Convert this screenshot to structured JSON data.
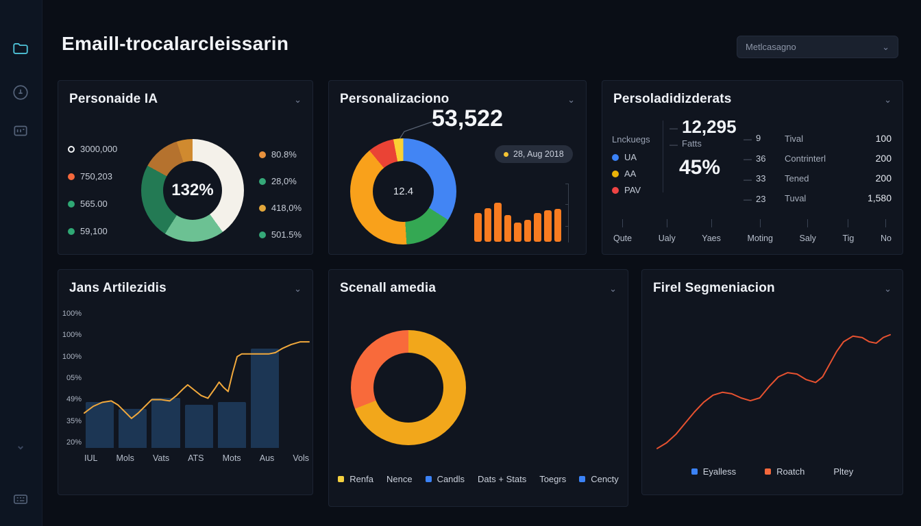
{
  "header": {
    "title": "Emaill-trocalarcleissarin",
    "filter_value": "Metlcasagno"
  },
  "sidebar": {
    "icons": [
      "folder-icon",
      "user-circle-icon",
      "card-icon",
      "chevron-icon",
      "grid-icon"
    ]
  },
  "panel1": {
    "title": "Personaide IA",
    "center_value": "132%",
    "legend_left": [
      {
        "value": "3000,000",
        "color": "#f2f4f6",
        "ring": true
      },
      {
        "value": "750,203",
        "color": "#f4683c"
      },
      {
        "value": "565.00",
        "color": "#2fa874"
      },
      {
        "value": "59,100",
        "color": "#2fa874"
      }
    ],
    "legend_right": [
      {
        "value": "80.8%",
        "color": "#e8913d"
      },
      {
        "value": "28,0%",
        "color": "#35a878"
      },
      {
        "value": "418,0%",
        "color": "#e2a63b"
      },
      {
        "value": "501.5%",
        "color": "#35a878"
      }
    ],
    "donut": {
      "type": "donut",
      "segments": [
        {
          "color": "#f4f1ea",
          "pct": 40
        },
        {
          "color": "#6cc193",
          "pct": 19
        },
        {
          "color": "#237a54",
          "pct": 24
        },
        {
          "color": "#b5722e",
          "pct": 12
        },
        {
          "color": "#d08a2f",
          "pct": 5
        }
      ]
    }
  },
  "panel2": {
    "title": "Personalizaciono",
    "callout_value": "53,522",
    "badge_label": "28, Aug 2018",
    "center_value": "12.4",
    "donut": {
      "type": "donut",
      "segments": [
        {
          "color": "#4285f4",
          "pct": 34
        },
        {
          "color": "#34a853",
          "pct": 15
        },
        {
          "color": "#f9a11b",
          "pct": 40
        },
        {
          "color": "#ea4335",
          "pct": 8
        },
        {
          "color": "#fbd034",
          "pct": 3
        }
      ]
    },
    "bars": {
      "type": "bar",
      "color": "#f97c20",
      "values": [
        44,
        52,
        60,
        41,
        29,
        34,
        44,
        48,
        51
      ]
    }
  },
  "panel3": {
    "title": "Persoladidizderats",
    "group_label": "Lnckuegs",
    "legend": [
      {
        "label": "UA",
        "color": "#3b82f6"
      },
      {
        "label": "AA",
        "color": "#eab308"
      },
      {
        "label": "PAV",
        "color": "#ef4444"
      }
    ],
    "headline_value": "12,295",
    "headline_label": "Fatts",
    "percent_value": "45%",
    "mini_values": [
      "9",
      "36",
      "33",
      "23"
    ],
    "stats": [
      {
        "label": "Tival",
        "value": "100"
      },
      {
        "label": "Contrinterl",
        "value": "200"
      },
      {
        "label": "Tened",
        "value": "200"
      },
      {
        "label": "Tuval",
        "value": "1,580"
      }
    ],
    "axis_labels": [
      "Qute",
      "Ualy",
      "Yaes",
      "Moting",
      "Saly",
      "Tig",
      "No"
    ]
  },
  "panel4": {
    "title": "Jans Artilezidis",
    "chart": {
      "type": "bar-line",
      "y_labels": [
        "100%",
        "100%",
        "100%",
        "05%",
        "49%",
        "35%",
        "20%"
      ],
      "x_labels": [
        "IUL",
        "Mols",
        "Vats",
        "ATS",
        "Mots",
        "Aus",
        "Vols"
      ],
      "bar_color": "#1c3654",
      "bar_values": [
        34,
        29,
        37,
        32,
        34,
        74
      ],
      "line_color": "#f2a93c",
      "line_points": [
        [
          0,
          74
        ],
        [
          4,
          69
        ],
        [
          8,
          66
        ],
        [
          12,
          65
        ],
        [
          15,
          68
        ],
        [
          18,
          73
        ],
        [
          21,
          78
        ],
        [
          24,
          74
        ],
        [
          27,
          69
        ],
        [
          30,
          64
        ],
        [
          34,
          64
        ],
        [
          38,
          65
        ],
        [
          41,
          61
        ],
        [
          44,
          56
        ],
        [
          46,
          53
        ],
        [
          49,
          57
        ],
        [
          52,
          61
        ],
        [
          55,
          63
        ],
        [
          58,
          56
        ],
        [
          60,
          51
        ],
        [
          62,
          55
        ],
        [
          64,
          58
        ],
        [
          66,
          44
        ],
        [
          68,
          32
        ],
        [
          70,
          30
        ],
        [
          74,
          30
        ],
        [
          78,
          30
        ],
        [
          82,
          30
        ],
        [
          85,
          29
        ],
        [
          88,
          26
        ],
        [
          92,
          23
        ],
        [
          96,
          21
        ],
        [
          100,
          21
        ]
      ]
    }
  },
  "panel5": {
    "title": "Scenall amedia",
    "donut": {
      "type": "donut",
      "segments": [
        {
          "color": "#f2a71b",
          "pct": 69
        },
        {
          "color": "#f86a3b",
          "pct": 31
        }
      ]
    },
    "legend": [
      {
        "label": "Renfa",
        "color": "#f4d03f",
        "shape": "sq"
      },
      {
        "label": "Nence"
      },
      {
        "label": "Candls",
        "color": "#3b82f6",
        "shape": "sq"
      },
      {
        "label": "Dats + Stats"
      },
      {
        "label": "Toegrs"
      },
      {
        "label": "Cencty",
        "color": "#3b82f6",
        "shape": "sq"
      }
    ]
  },
  "panel6": {
    "title": "Firel Segmeniacion",
    "chart": {
      "type": "line",
      "line_color": "#e85230",
      "line_points": [
        [
          0,
          96
        ],
        [
          4,
          92
        ],
        [
          8,
          86
        ],
        [
          12,
          78
        ],
        [
          16,
          70
        ],
        [
          20,
          63
        ],
        [
          24,
          58
        ],
        [
          28,
          56
        ],
        [
          32,
          57
        ],
        [
          36,
          60
        ],
        [
          40,
          62
        ],
        [
          44,
          60
        ],
        [
          48,
          52
        ],
        [
          52,
          45
        ],
        [
          56,
          42
        ],
        [
          60,
          43
        ],
        [
          64,
          47
        ],
        [
          68,
          49
        ],
        [
          71,
          45
        ],
        [
          74,
          36
        ],
        [
          77,
          27
        ],
        [
          80,
          20
        ],
        [
          84,
          16
        ],
        [
          88,
          17
        ],
        [
          91,
          20
        ],
        [
          94,
          21
        ],
        [
          97,
          17
        ],
        [
          100,
          15
        ]
      ]
    },
    "legend": [
      {
        "label": "Eyalless",
        "color": "#3b82f6",
        "shape": "sq"
      },
      {
        "label": "Roatch",
        "color": "#f4683c",
        "shape": "sq"
      },
      {
        "label": "Pltey"
      }
    ]
  }
}
